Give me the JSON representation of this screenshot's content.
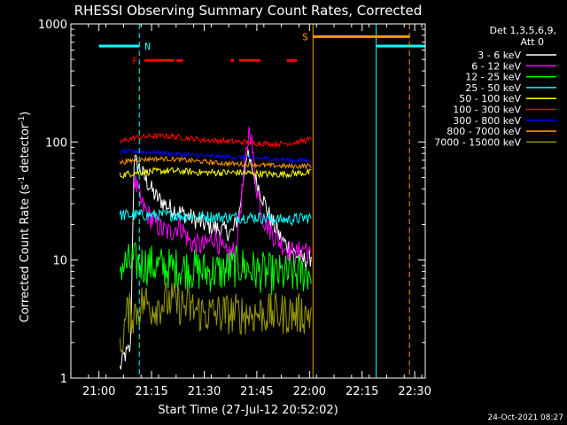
{
  "chart_data": {
    "type": "line",
    "title": "RHESSI Observing Summary Count Rates, Corrected",
    "xlabel": "Start Time (27-Jul-12 20:52:02)",
    "ylabel": "Corrected Count Rate (s⁻¹ detector⁻¹)",
    "ylabel_main": "Corrected Count Rate (s",
    "ylabel_sup1": "-1",
    "ylabel_mid": " detector",
    "ylabel_sup2": "-1",
    "ylabel_close": ")",
    "yscale": "log",
    "ylim": [
      1,
      1000
    ],
    "xlim_minutes": [
      20.0,
      28.0
    ],
    "x_unit": "minutes after 20:40",
    "xlim_labels": [
      "20:52:00",
      "22:33:00"
    ],
    "x_ticks": [
      {
        "label": "21:00",
        "min": 20
      },
      {
        "label": "21:15",
        "min": 35
      },
      {
        "label": "21:30",
        "min": 50
      },
      {
        "label": "21:45",
        "min": 65
      },
      {
        "label": "22:00",
        "min": 80
      },
      {
        "label": "22:15",
        "min": 95
      },
      {
        "label": "22:30",
        "min": 110
      }
    ],
    "y_ticks": [
      {
        "label": "1",
        "value": 1
      },
      {
        "label": "10",
        "value": 10
      },
      {
        "label": "100",
        "value": 100
      },
      {
        "label": "1000",
        "value": 1000
      }
    ],
    "legend_header": [
      "Det 1,3,5,6,9,",
      "Att 0"
    ],
    "legend_position": "right",
    "series": [
      {
        "name": "3 - 6 keV",
        "color": "#ffffff",
        "x": [
          26,
          27,
          29,
          30,
          31,
          33,
          36,
          40,
          45,
          50,
          55,
          58,
          60,
          62,
          64,
          66,
          69,
          72,
          75,
          78,
          80,
          80.5
        ],
        "y": [
          1.2,
          1.5,
          1.8,
          70,
          65,
          50,
          35,
          28,
          24,
          20,
          18,
          17,
          25,
          80,
          55,
          38,
          22,
          15,
          12,
          10,
          10,
          11
        ],
        "noise": 0.08
      },
      {
        "name": "6 - 12 keV",
        "color": "#ff00ff",
        "x": [
          30,
          32,
          35,
          38,
          40,
          43,
          46,
          50,
          53,
          56,
          59,
          62,
          63,
          64,
          65,
          67,
          70,
          73,
          76,
          79,
          80.5
        ],
        "y": [
          50,
          30,
          22,
          18,
          17,
          20,
          14,
          13,
          16,
          11,
          12,
          80,
          140,
          70,
          40,
          22,
          16,
          13,
          11,
          13,
          10
        ],
        "noise": 0.1
      },
      {
        "name": "12 - 25 keV",
        "color": "#00ff00",
        "x": [
          26,
          30,
          35,
          40,
          45,
          50,
          55,
          60,
          65,
          70,
          75,
          80.5
        ],
        "y": [
          9,
          9.5,
          9,
          8.5,
          8.5,
          8,
          8,
          9,
          8,
          7.5,
          7.5,
          8
        ],
        "noise": 0.18
      },
      {
        "name": "25 - 50 keV",
        "color": "#00ffff",
        "x": [
          26,
          30,
          35,
          40,
          45,
          50,
          55,
          60,
          65,
          70,
          75,
          80.5
        ],
        "y": [
          24,
          24,
          24,
          24,
          23.5,
          23.5,
          23,
          23,
          23,
          22,
          22,
          23
        ],
        "noise": 0.05
      },
      {
        "name": "50 - 100 keV",
        "color": "#ffff00",
        "x": [
          26,
          30,
          35,
          40,
          45,
          50,
          55,
          60,
          65,
          70,
          75,
          80.5
        ],
        "y": [
          52,
          55,
          56,
          57,
          56,
          55,
          55,
          55,
          54,
          53,
          54,
          55
        ],
        "noise": 0.03
      },
      {
        "name": "100 - 300 keV",
        "color": "#ff0000",
        "x": [
          26,
          30,
          35,
          40,
          45,
          50,
          55,
          60,
          65,
          70,
          75,
          80.5
        ],
        "y": [
          100,
          108,
          112,
          112,
          108,
          104,
          102,
          100,
          98,
          96,
          98,
          105
        ],
        "noise": 0.025
      },
      {
        "name": "300 - 800 keV",
        "color": "#0000ff",
        "x": [
          26,
          30,
          35,
          40,
          45,
          50,
          55,
          60,
          65,
          70,
          75,
          80.5
        ],
        "y": [
          82,
          83,
          82,
          80,
          78,
          76,
          75,
          74,
          73,
          72,
          70,
          70
        ],
        "noise": 0.02
      },
      {
        "name": "800 - 7000 keV",
        "color": "#ff9900",
        "x": [
          26,
          30,
          35,
          40,
          45,
          50,
          55,
          60,
          65,
          70,
          75,
          80.5
        ],
        "y": [
          67,
          70,
          72,
          72,
          70,
          68,
          66,
          65,
          64,
          63,
          62,
          63
        ],
        "noise": 0.02
      },
      {
        "name": "7000 - 15000 keV",
        "color": "#999900",
        "x": [
          26,
          27,
          28,
          30,
          33,
          35,
          40,
          45,
          50,
          55,
          60,
          65,
          70,
          75,
          80.5
        ],
        "y": [
          1.5,
          2.5,
          3.5,
          3.5,
          4.5,
          4,
          4.5,
          4,
          3.5,
          3.5,
          3.5,
          3.5,
          3.5,
          3.5,
          3.5
        ],
        "noise": 0.18
      }
    ],
    "flags": {
      "night": {
        "label": "N",
        "color": "#00ffff",
        "bar_segments": [
          [
            20.0,
            31.5
          ],
          [
            99.0,
            113.0
          ]
        ],
        "bar_value": 650,
        "dashed_lines": [
          31.5,
          113.0
        ],
        "solid_lines": [
          99.0
        ]
      },
      "flare": {
        "label": "F",
        "color": "#ff0000",
        "bar_value": 490,
        "segments": [
          [
            33.0,
            41.5
          ],
          [
            42.0,
            44.0
          ],
          [
            57.5,
            58.5
          ],
          [
            60.0,
            66.0
          ],
          [
            73.5,
            76.5
          ]
        ]
      },
      "saa": {
        "label": "S",
        "color": "#ff9900",
        "bar_value": 780,
        "bar_segments": [
          [
            81.0,
            108.5
          ]
        ],
        "solid_lines": [
          81.0
        ],
        "dashed_lines": [
          108.5
        ]
      }
    }
  },
  "footer": {
    "timestamp": "24-Oct-2021 08:27"
  }
}
